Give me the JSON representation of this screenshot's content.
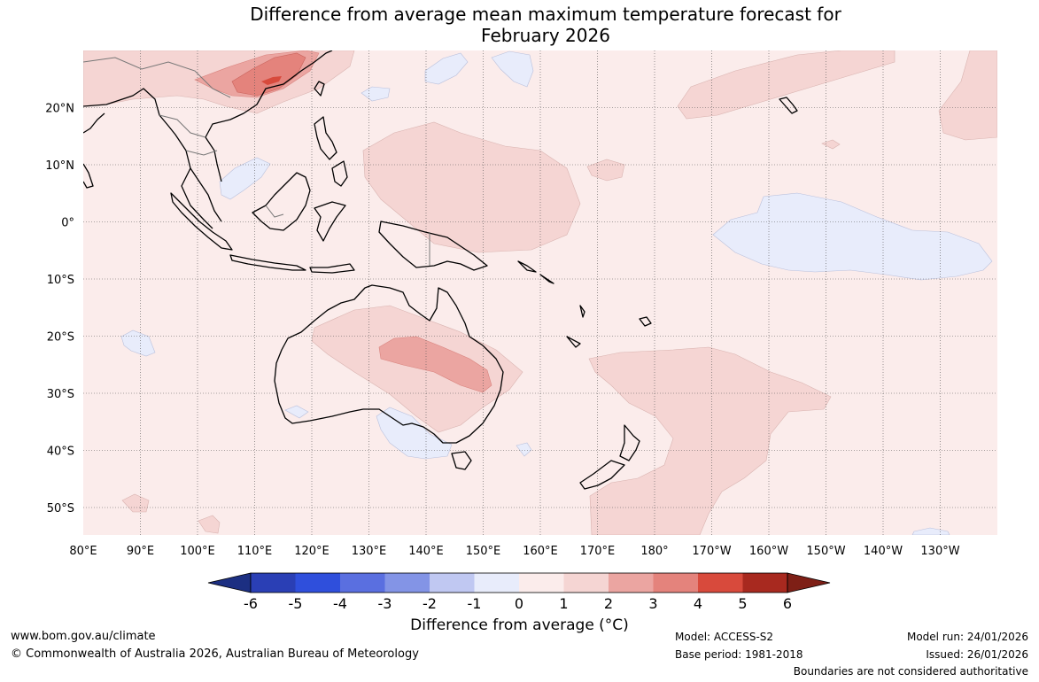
{
  "title": {
    "line1": "Difference from average mean maximum temperature forecast for",
    "line2": "February 2026"
  },
  "map": {
    "lon_labels": [
      "80°E",
      "90°E",
      "100°E",
      "110°E",
      "120°E",
      "130°E",
      "140°E",
      "150°E",
      "160°E",
      "170°E",
      "180°",
      "170°W",
      "160°W",
      "150°W",
      "140°W",
      "130°W"
    ],
    "lat_labels": [
      "20°N",
      "10°N",
      "0°",
      "10°S",
      "20°S",
      "30°S",
      "40°S",
      "50°S"
    ],
    "background_anomaly_class": "0 to 1",
    "features": [
      {
        "name": "Southern China warm anomaly",
        "class": "3 to 5"
      },
      {
        "name": "Central Australia warm anomaly",
        "class": "2 to 3"
      },
      {
        "name": "Central Pacific cool anomaly",
        "class": "-1 to 0"
      },
      {
        "name": "Southeast Pacific warm anomaly",
        "class": "1 to 2"
      }
    ]
  },
  "colorbar": {
    "ticks": [
      "-6",
      "-5",
      "-4",
      "-3",
      "-2",
      "-1",
      "0",
      "1",
      "2",
      "3",
      "4",
      "5",
      "6"
    ],
    "colors": [
      "#1c2f82",
      "#2a3fb5",
      "#2f4fdc",
      "#5a6fe0",
      "#8394e6",
      "#c0c8f2",
      "#e8ecfb",
      "#fbeceb",
      "#f5d5d3",
      "#eba5a1",
      "#e4837c",
      "#d84a3c",
      "#a8291f",
      "#7e1f16"
    ],
    "label": "Difference from average (°C)"
  },
  "footer": {
    "website": "www.bom.gov.au/climate",
    "copyright": "© Commonwealth of Australia 2026, Australian Bureau of Meteorology",
    "model": "Model: ACCESS-S2",
    "base_period": "Base period: 1981-2018",
    "model_run": "Model run: 24/01/2026",
    "issued": "Issued: 26/01/2026",
    "disclaimer": "Boundaries are not considered authoritative"
  }
}
